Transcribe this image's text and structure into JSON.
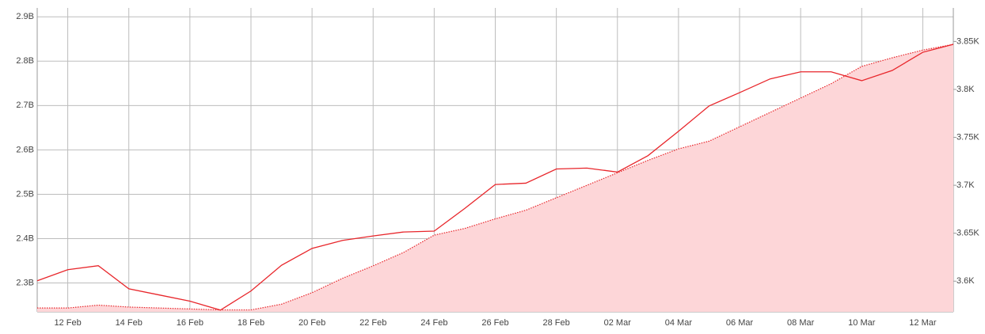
{
  "chart_data": {
    "type": "line",
    "categories": [
      null,
      "12 Feb",
      null,
      "14 Feb",
      null,
      "16 Feb",
      null,
      "18 Feb",
      null,
      "20 Feb",
      null,
      "22 Feb",
      null,
      "24 Feb",
      null,
      "26 Feb",
      null,
      "28 Feb",
      null,
      "02 Mar",
      null,
      "04 Mar",
      null,
      "06 Mar",
      null,
      "08 Mar",
      null,
      "10 Mar",
      null,
      "12 Mar",
      null
    ],
    "series": [
      {
        "color": "#e8262b",
        "values": [
          2.305,
          2.33,
          2.339,
          2.287,
          2.273,
          2.259,
          2.239,
          2.282,
          2.34,
          2.378,
          2.396,
          2.406,
          2.415,
          2.417,
          2.468,
          2.522,
          2.525,
          2.557,
          2.559,
          2.55,
          2.587,
          2.642,
          2.699,
          2.729,
          2.76,
          2.776,
          2.776,
          2.756,
          2.779,
          2.82,
          2.838
        ]
      },
      {
        "color": "#e8262b",
        "axis": "y2",
        "fill": "#fdd6d8",
        "values": [
          3.572,
          3.572,
          3.575,
          3.573,
          3.572,
          3.571,
          3.57,
          3.57,
          3.576,
          3.588,
          3.603,
          3.616,
          3.63,
          3.648,
          3.655,
          3.665,
          3.674,
          3.687,
          3.7,
          3.713,
          3.726,
          3.738,
          3.746,
          3.761,
          3.776,
          3.791,
          3.806,
          3.824,
          3.833,
          3.841,
          3.847
        ]
      }
    ],
    "ylim": [
      2.235,
      2.92
    ],
    "yticks": [
      {
        "value": 2.3,
        "label": "2.3B"
      },
      {
        "value": 2.4,
        "label": "2.4B"
      },
      {
        "value": 2.5,
        "label": "2.5B"
      },
      {
        "value": 2.6,
        "label": "2.6B"
      },
      {
        "value": 2.7,
        "label": "2.7B"
      },
      {
        "value": 2.8,
        "label": "2.8B"
      },
      {
        "value": 2.9,
        "label": "2.9B"
      }
    ],
    "y2lim": [
      3.568,
      3.885
    ],
    "y2ticks": [
      {
        "value": 3.6,
        "label": "3.6K"
      },
      {
        "value": 3.65,
        "label": "3.65K"
      },
      {
        "value": 3.7,
        "label": "3.7K"
      },
      {
        "value": 3.75,
        "label": "3.75K"
      },
      {
        "value": 3.8,
        "label": "3.8K"
      },
      {
        "value": 3.85,
        "label": "3.85K"
      }
    ],
    "grid": true
  }
}
